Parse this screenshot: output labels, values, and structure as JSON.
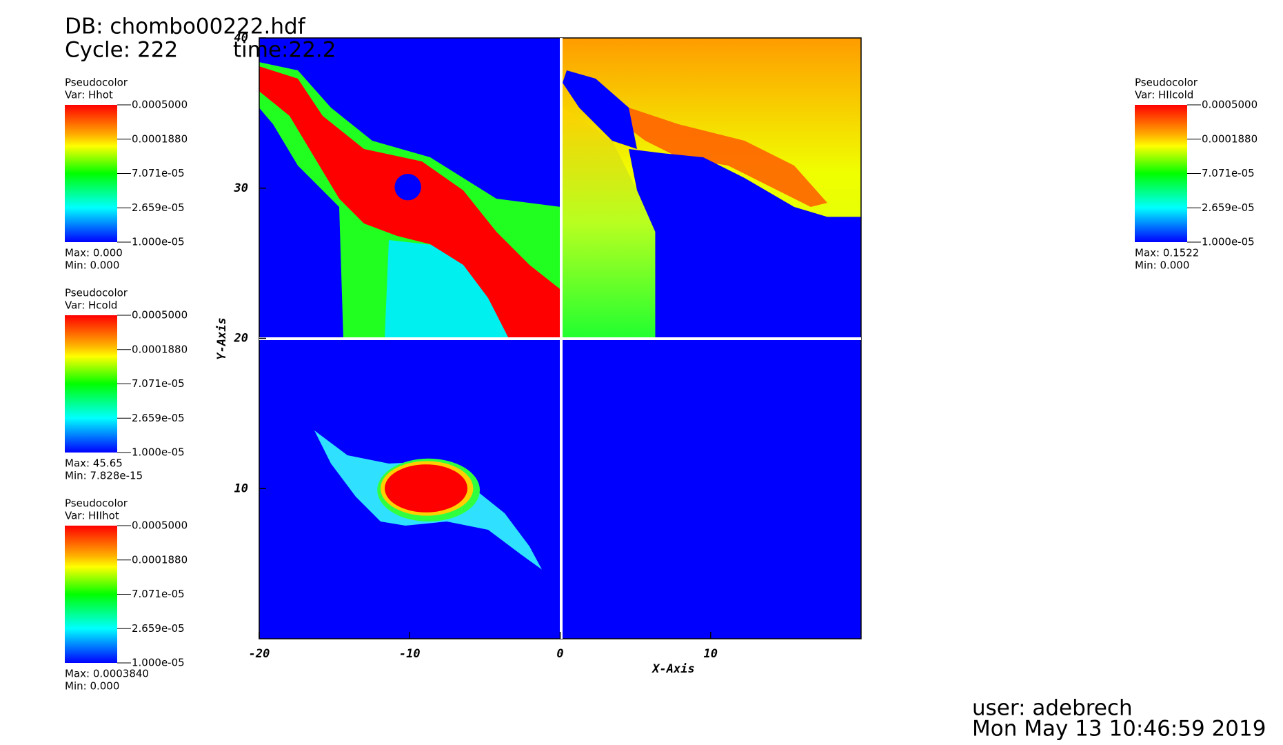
{
  "header": {
    "db": "DB: chombo00222.hdf",
    "cycle": "Cycle: 222",
    "time": "time:22.2"
  },
  "legends": [
    {
      "title": "Pseudocolor",
      "var": "Var: Hhot",
      "labels": [
        "0.0005000",
        "0.0001880",
        "7.071e-05",
        "2.659e-05",
        "1.000e-05"
      ],
      "max": "Max: 0.000",
      "min": "Min: 0.000"
    },
    {
      "title": "Pseudocolor",
      "var": "Var: Hcold",
      "labels": [
        "0.0005000",
        "0.0001880",
        "7.071e-05",
        "2.659e-05",
        "1.000e-05"
      ],
      "max": "Max: 45.65",
      "min": "Min: 7.828e-15"
    },
    {
      "title": "Pseudocolor",
      "var": "Var: HIIhot",
      "labels": [
        "0.0005000",
        "0.0001880",
        "7.071e-05",
        "2.659e-05",
        "1.000e-05"
      ],
      "max": "Max: 0.0003840",
      "min": "Min: 0.000"
    },
    {
      "title": "Pseudocolor",
      "var": "Var: HIIcold",
      "labels": [
        "0.0005000",
        "0.0001880",
        "7.071e-05",
        "2.659e-05",
        "1.000e-05"
      ],
      "max": "Max: 0.1522",
      "min": "Min: 0.000"
    }
  ],
  "plot": {
    "x_label": "X-Axis",
    "y_label": "Y-Axis",
    "xlim": [
      -20,
      20
    ],
    "ylim": [
      0,
      40
    ],
    "xticks": [
      -20,
      -10,
      0,
      10
    ],
    "yticks": [
      10,
      20,
      30,
      40
    ]
  },
  "footer": {
    "user": "user: adebrech",
    "date": "Mon May 13 10:46:59 2019"
  }
}
